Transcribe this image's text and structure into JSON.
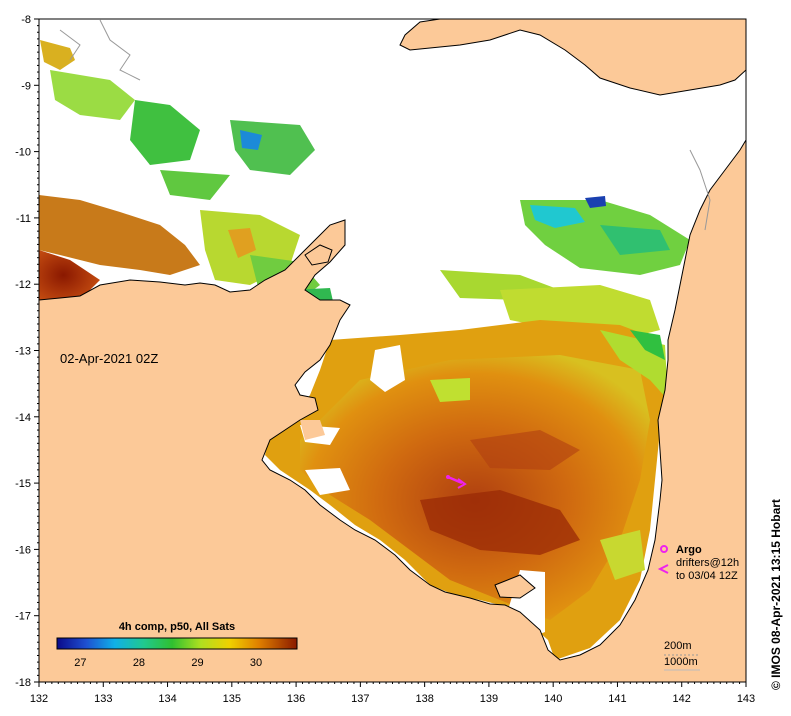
{
  "map": {
    "date_label": "02-Apr-2021 02Z",
    "lon_ticks": [
      "132",
      "133",
      "134",
      "135",
      "136",
      "137",
      "138",
      "139",
      "140",
      "141",
      "142",
      "143"
    ],
    "lat_ticks": [
      "-8",
      "-9",
      "-10",
      "-11",
      "-12",
      "-13",
      "-14",
      "-15",
      "-16",
      "-17",
      "-18"
    ],
    "lon_range": [
      132,
      143
    ],
    "lat_range": [
      -18,
      -8
    ],
    "land_color": "#fcc998",
    "nodata_color": "#ffffff"
  },
  "colorbar": {
    "title": "4h comp, p50, All Sats",
    "ticks": [
      "27",
      "28",
      "29",
      "30"
    ],
    "range": [
      26.6,
      30.7
    ]
  },
  "legend": {
    "argo_label": "Argo",
    "drifters_line1": "drifters@12h",
    "drifters_line2": "to 03/04 12Z",
    "argo_color": "#ee22ee"
  },
  "contours": {
    "line1": "200m",
    "line2": "1000m"
  },
  "credit": "© IMOS 08-Apr-2021 13:15 Hobart"
}
